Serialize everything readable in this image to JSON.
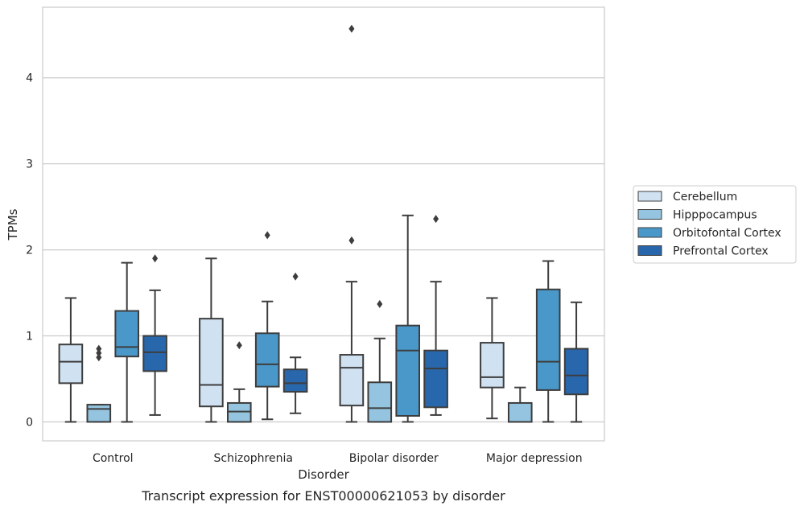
{
  "chart_data": {
    "type": "box",
    "categories": [
      "Control",
      "Schizophrenia",
      "Bipolar disorder",
      "Major depression"
    ],
    "xlabel": "Disorder",
    "ylabel": "TPMs",
    "ylim": [
      -0.22,
      4.82
    ],
    "yticks": [
      0,
      1,
      2,
      3,
      4
    ],
    "grid": "horizontal",
    "legend_position": "right",
    "caption": "Transcript expression for ENST00000621053 by disorder",
    "series": [
      {
        "name": "Cerebellum",
        "color": "#d0e1f2",
        "boxes": [
          {
            "whislo": 0.0,
            "q1": 0.45,
            "med": 0.7,
            "q3": 0.9,
            "whishi": 1.44,
            "fliers": []
          },
          {
            "whislo": 0.0,
            "q1": 0.18,
            "med": 0.43,
            "q3": 1.2,
            "whishi": 1.9,
            "fliers": []
          },
          {
            "whislo": 0.0,
            "q1": 0.19,
            "med": 0.63,
            "q3": 0.78,
            "whishi": 1.63,
            "fliers": [
              2.11,
              4.57
            ]
          },
          {
            "whislo": 0.04,
            "q1": 0.4,
            "med": 0.52,
            "q3": 0.92,
            "whishi": 1.44,
            "fliers": []
          }
        ]
      },
      {
        "name": "Hipppocampus",
        "color": "#94c4df",
        "boxes": [
          {
            "whislo": 0.0,
            "q1": 0.0,
            "med": 0.15,
            "q3": 0.2,
            "whishi": 0.2,
            "fliers": [
              0.75,
              0.8,
              0.85
            ]
          },
          {
            "whislo": 0.0,
            "q1": 0.0,
            "med": 0.12,
            "q3": 0.22,
            "whishi": 0.38,
            "fliers": [
              0.89
            ]
          },
          {
            "whislo": 0.0,
            "q1": 0.0,
            "med": 0.16,
            "q3": 0.46,
            "whishi": 0.97,
            "fliers": [
              1.37
            ]
          },
          {
            "whislo": 0.0,
            "q1": 0.0,
            "med": 0.0,
            "q3": 0.22,
            "whishi": 0.4,
            "fliers": []
          }
        ]
      },
      {
        "name": "Orbitofontal Cortex",
        "color": "#4a98c9",
        "boxes": [
          {
            "whislo": 0.0,
            "q1": 0.76,
            "med": 0.87,
            "q3": 1.29,
            "whishi": 1.85,
            "fliers": []
          },
          {
            "whislo": 0.03,
            "q1": 0.41,
            "med": 0.67,
            "q3": 1.03,
            "whishi": 1.4,
            "fliers": [
              2.17
            ]
          },
          {
            "whislo": 0.0,
            "q1": 0.07,
            "med": 0.83,
            "q3": 1.12,
            "whishi": 2.4,
            "fliers": []
          },
          {
            "whislo": 0.0,
            "q1": 0.37,
            "med": 0.7,
            "q3": 1.54,
            "whishi": 1.87,
            "fliers": []
          }
        ]
      },
      {
        "name": "Prefrontal Cortex",
        "color": "#2967ac",
        "boxes": [
          {
            "whislo": 0.08,
            "q1": 0.59,
            "med": 0.81,
            "q3": 1.0,
            "whishi": 1.53,
            "fliers": [
              1.9
            ]
          },
          {
            "whislo": 0.1,
            "q1": 0.35,
            "med": 0.45,
            "q3": 0.61,
            "whishi": 0.75,
            "fliers": [
              1.69
            ]
          },
          {
            "whislo": 0.08,
            "q1": 0.17,
            "med": 0.62,
            "q3": 0.83,
            "whishi": 1.63,
            "fliers": [
              2.36
            ]
          },
          {
            "whislo": 0.0,
            "q1": 0.32,
            "med": 0.54,
            "q3": 0.85,
            "whishi": 1.39,
            "fliers": []
          }
        ]
      }
    ]
  }
}
